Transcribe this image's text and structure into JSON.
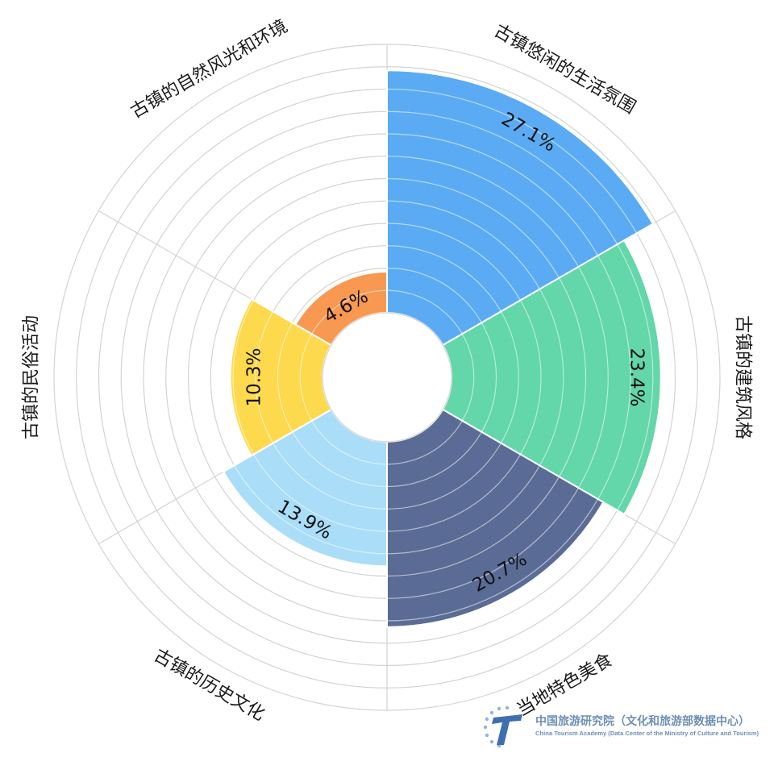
{
  "chart_data": {
    "type": "nightingale-rose",
    "categories": [
      "古镇悠闲的生活氛围",
      "古镇的建筑风格",
      "当地特色美食",
      "古镇的历史文化",
      "古镇的民俗活动",
      "古镇的自然风光和环境"
    ],
    "values": [
      27.1,
      23.4,
      20.7,
      13.9,
      10.3,
      4.6
    ],
    "value_labels": [
      "27.1%",
      "23.4%",
      "20.7%",
      "13.9%",
      "10.3%",
      "4.6%"
    ],
    "colors": [
      "#5aabf4",
      "#63d6aa",
      "#5a6c95",
      "#a9ddf8",
      "#fdd94e",
      "#f89851"
    ],
    "rmax": 30,
    "ring_step": 2.5,
    "grid": true
  },
  "watermark": {
    "title": "中国旅游研究院（文化和旅游部数据中心）",
    "subtitle": "China Tourism Academy (Data Center of the Ministry of Culture and Tourism)"
  }
}
